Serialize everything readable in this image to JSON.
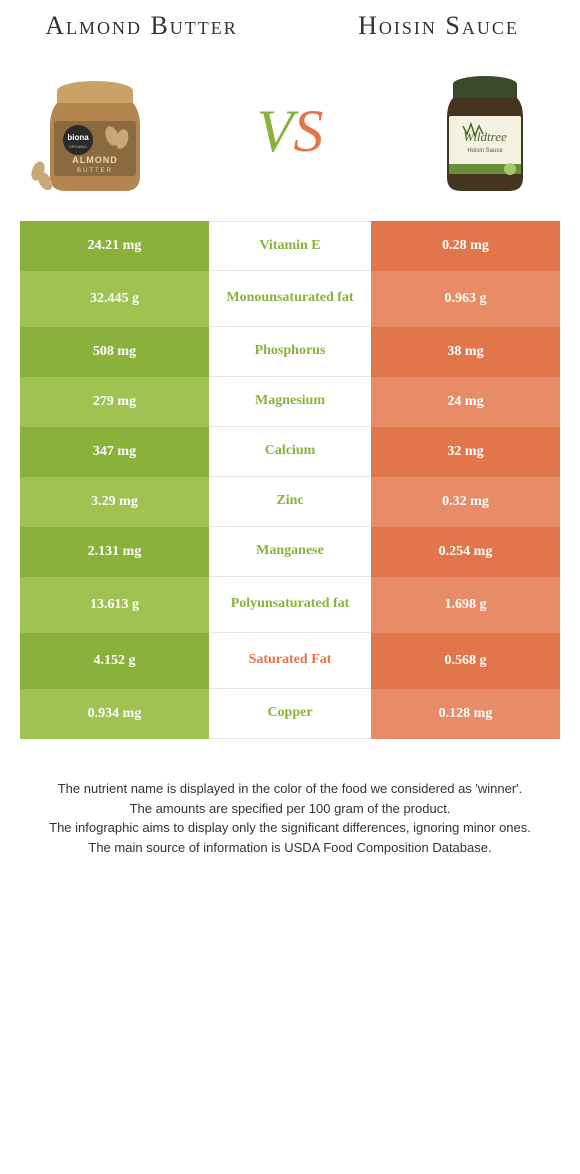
{
  "left": {
    "title": "Almond Butter",
    "jar": {
      "lid_color": "#caa267",
      "body_color": "#b4854f",
      "label_bg": "#8a6a3e",
      "brand": "biona",
      "subbrand": "ORGANIC",
      "product": "ALMOND",
      "product2": "BUTTER"
    }
  },
  "right": {
    "title": "Hoisin Sauce",
    "jar": {
      "lid_color": "#3a4a2c",
      "body_color": "#45341f",
      "label_bg": "#f4f1e2",
      "brand": "Wildtree",
      "product": "Hoisin Sauce"
    }
  },
  "vs": {
    "v": "V",
    "s": "S"
  },
  "colors": {
    "left_cell": "#8bb13d",
    "left_cell_alt": "#9fc252",
    "right_cell": "#e2764b",
    "right_cell_alt": "#e88c67",
    "mid_left": "#8bb13d",
    "mid_right": "#e2764b",
    "border": "#e8e8e8"
  },
  "rows": [
    {
      "left": "24.21 mg",
      "label": "Vitamin E",
      "right": "0.28 mg",
      "winner": "left"
    },
    {
      "left": "32.445 g",
      "label": "Monounsaturated fat",
      "right": "0.963 g",
      "winner": "left"
    },
    {
      "left": "508 mg",
      "label": "Phosphorus",
      "right": "38 mg",
      "winner": "left"
    },
    {
      "left": "279 mg",
      "label": "Magnesium",
      "right": "24 mg",
      "winner": "left"
    },
    {
      "left": "347 mg",
      "label": "Calcium",
      "right": "32 mg",
      "winner": "left"
    },
    {
      "left": "3.29 mg",
      "label": "Zinc",
      "right": "0.32 mg",
      "winner": "left"
    },
    {
      "left": "2.131 mg",
      "label": "Manganese",
      "right": "0.254 mg",
      "winner": "left"
    },
    {
      "left": "13.613 g",
      "label": "Polyunsaturated fat",
      "right": "1.698 g",
      "winner": "left"
    },
    {
      "left": "4.152 g",
      "label": "Saturated Fat",
      "right": "0.568 g",
      "winner": "right"
    },
    {
      "left": "0.934 mg",
      "label": "Copper",
      "right": "0.128 mg",
      "winner": "left"
    }
  ],
  "footnotes": [
    "The nutrient name is displayed in the color of the food we considered as 'winner'.",
    "The amounts are specified per 100 gram of the product.",
    "The infographic aims to display only the significant differences, ignoring minor ones.",
    "The main source of information is USDA Food Composition Database."
  ]
}
